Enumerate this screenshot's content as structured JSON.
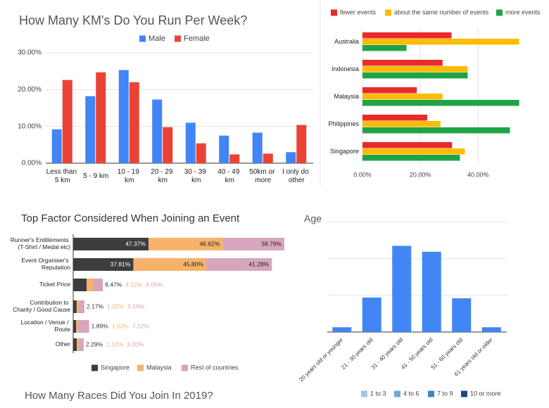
{
  "chart_data": [
    {
      "type": "bar",
      "title": "How Many KM's Do You Run Per Week?",
      "categories": [
        "Less than 5 km",
        "5 - 9 km",
        "10 - 19 km",
        "20 - 29 km",
        "30 - 39 km",
        "40 - 49 km",
        "50km or more",
        "I only do other"
      ],
      "series": [
        {
          "name": "Male",
          "color": "#4285f4",
          "values": [
            9.2,
            18.2,
            25.3,
            17.3,
            11,
            7.5,
            8.3,
            3
          ]
        },
        {
          "name": "Female",
          "color": "#ea4335",
          "values": [
            22.6,
            24.7,
            22,
            9.8,
            5.4,
            2.4,
            2.6,
            10.4
          ]
        }
      ],
      "ylim": [
        0,
        30
      ],
      "yticks": [
        {
          "value": 0,
          "label": "0.00%"
        },
        {
          "value": 10,
          "label": "10.00%"
        },
        {
          "value": 20,
          "label": "20.00%"
        },
        {
          "value": 30,
          "label": "30.00%"
        }
      ],
      "grid": true
    },
    {
      "type": "horizontal_bar",
      "categories": [
        "Australia",
        "Indonesia",
        "Malaysia",
        "Philippines",
        "Singapore"
      ],
      "series": [
        {
          "name": "fewer events",
          "color": "#ea2a2a",
          "values": [
            30.8,
            27.7,
            18.8,
            22.4,
            31
          ]
        },
        {
          "name": "about the same number of events",
          "color": "#fbbc04",
          "values": [
            54.2,
            36.4,
            27.7,
            27,
            35.4
          ]
        },
        {
          "name": "more events",
          "color": "#1ea446",
          "values": [
            15.2,
            36.4,
            54.2,
            51,
            33.7
          ]
        }
      ],
      "xlim": [
        0,
        56
      ],
      "xticks": [
        {
          "value": 0,
          "label": "0.00%"
        },
        {
          "value": 20,
          "label": "20.00%"
        },
        {
          "value": 40,
          "label": "40.00%"
        }
      ],
      "grid": true
    },
    {
      "type": "stacked_horizontal_bar",
      "title": "Top Factor Considered When Joining an Event",
      "categories": [
        "Runner's Entitlements (T-Shirt / Medal etc)",
        "Event Organiser's Reputation",
        "Ticket Price",
        "Contribution to Charity / Good Cause",
        "Location / Venue / Route",
        "Other"
      ],
      "series": [
        {
          "name": "Singapore",
          "color": "#3d3d3d",
          "values": [
            47.37,
            37.81,
            8.47,
            2.17,
            1.89,
            2.29
          ],
          "value_labels": [
            "47.37%",
            "37.81%",
            "8.47%",
            "2.17%",
            "1.89%",
            "2.29%"
          ]
        },
        {
          "name": "Malaysia",
          "color": "#f6b26b",
          "values": [
            46.62,
            45.8,
            4.12,
            1.32,
            1.02,
            1.12
          ],
          "value_labels": [
            "46.62%",
            "45.80%",
            "4.12%",
            "1.32%",
            "1.02%",
            "1.12%"
          ]
        },
        {
          "name": "Rest of countries",
          "color": "#d5a6bd",
          "values": [
            38.79,
            41.28,
            6.05,
            3.56,
            7.12,
            3.2
          ],
          "value_labels": [
            "38.79%",
            "41.28%",
            "6.05%",
            "3.56%",
            "7.12%",
            "3.20%"
          ]
        }
      ]
    },
    {
      "type": "bar",
      "title": "Age",
      "categories": [
        "20 years old or younger",
        "21 - 30 years old",
        "31 - 40 years old",
        "41 - 50 years old",
        "51 - 60 years old",
        "61 years old or older"
      ],
      "values": [
        0.13,
        0.94,
        2.35,
        2.19,
        0.92,
        0.13
      ],
      "color": "#4285f4",
      "ylim": [
        0,
        3.3
      ],
      "gridlines": [
        0,
        1,
        2,
        3
      ]
    },
    {
      "type": "bar",
      "title": "How Many Races Did You Join In 2019?",
      "series": [
        {
          "name": "1 to 3",
          "color": "#9fc5e8"
        },
        {
          "name": "4 to 6",
          "color": "#6fa8dc"
        },
        {
          "name": "7 to 9",
          "color": "#3d85c6"
        },
        {
          "name": "10 or more",
          "color": "#1c4587"
        }
      ]
    }
  ]
}
